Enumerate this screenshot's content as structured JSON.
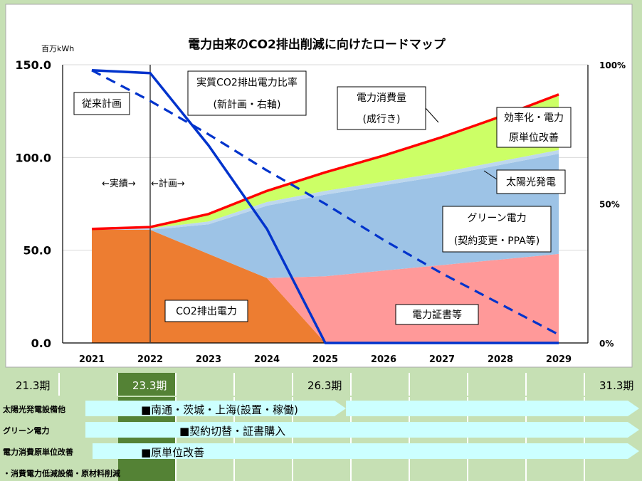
{
  "chart_data": {
    "type": "area",
    "title": "電力由来のCO2排出削減に向けたロードマップ",
    "y_unit_label": "百万kWh",
    "x": [
      "2021",
      "2022",
      "2023",
      "2024",
      "2025",
      "2026",
      "2027",
      "2028",
      "2029"
    ],
    "ylim": [
      0,
      150
    ],
    "yticks": [
      "0.0",
      "50.0",
      "100.0",
      "150.0"
    ],
    "y2ticks": [
      "0%",
      "50%",
      "100%"
    ],
    "y2lim": [
      0,
      100
    ],
    "grid": true,
    "series": [
      {
        "name": "CO2排出電力",
        "kind": "area",
        "color": "#ed7d31",
        "values": [
          61,
          61,
          48,
          35,
          0,
          0,
          0,
          0,
          0
        ]
      },
      {
        "name": "電力証書等",
        "kind": "area",
        "color": "#ff9999",
        "values": [
          0,
          0,
          0,
          0,
          36,
          39,
          42,
          45,
          48
        ]
      },
      {
        "name": "グリーン電力（契約変更・PPA等）",
        "kind": "area",
        "color": "#9dc3e6",
        "values": [
          0,
          0,
          16,
          39,
          44,
          46,
          48,
          51,
          54
        ]
      },
      {
        "name": "太陽光発電",
        "kind": "area",
        "color": "#bdd7ee",
        "values": [
          0,
          0.8,
          1.5,
          2.0,
          2.0,
          2.0,
          2.0,
          2.0,
          2.0
        ]
      },
      {
        "name": "効率化・電力原単位改善",
        "kind": "area",
        "color": "#ccff66",
        "values": [
          0,
          0,
          3.5,
          6,
          10,
          14,
          19,
          25,
          30
        ]
      },
      {
        "name": "電力消費量（成行き）",
        "kind": "line",
        "color": "#ff0000",
        "values": [
          61.5,
          62.5,
          69.5,
          82,
          92,
          101,
          111,
          122,
          134
        ]
      },
      {
        "name": "実質CO2排出電力比率（新計画・右軸）",
        "kind": "line",
        "axis": "right",
        "color": "#0033cc",
        "values": [
          98,
          97,
          71,
          41,
          0,
          0,
          0,
          0,
          0
        ]
      },
      {
        "name": "従来計画",
        "kind": "dashed-line",
        "axis": "right",
        "color": "#0033cc",
        "values": [
          98,
          87,
          75,
          62,
          50,
          37,
          25,
          14,
          3
        ]
      }
    ],
    "annotations": {
      "conventional_plan": "従来計画",
      "actual_ratio_line1": "実質CO2排出電力比率",
      "actual_ratio_line2": "(新計画・右軸)",
      "consumption_line1": "電力消費量",
      "consumption_line2": "(成行き)",
      "efficiency_line1": "効率化・電力",
      "efficiency_line2": "原単位改善",
      "solar": "太陽光発電",
      "green_line1": "グリーン電力",
      "green_line2": "(契約変更・PPA等)",
      "co2": "CO2排出電力",
      "certificate": "電力証書等",
      "actual_arrow": "←実績→",
      "plan_arrow": "←計画→"
    }
  },
  "timeline": {
    "periods": [
      "21.3期",
      "23.3期",
      "26.3期",
      "31.3期"
    ],
    "rows": [
      {
        "label": "太陽光発電設備他",
        "text": "■南通・茨城・上海(設置・稼働)"
      },
      {
        "label": "グリーン電力",
        "text": "■契約切替・証書購入"
      },
      {
        "label": "電力消費原単位改善",
        "text": "■原単位改善"
      },
      {
        "label": "・消費電力低減設備・原材料削減",
        "text": ""
      }
    ]
  }
}
